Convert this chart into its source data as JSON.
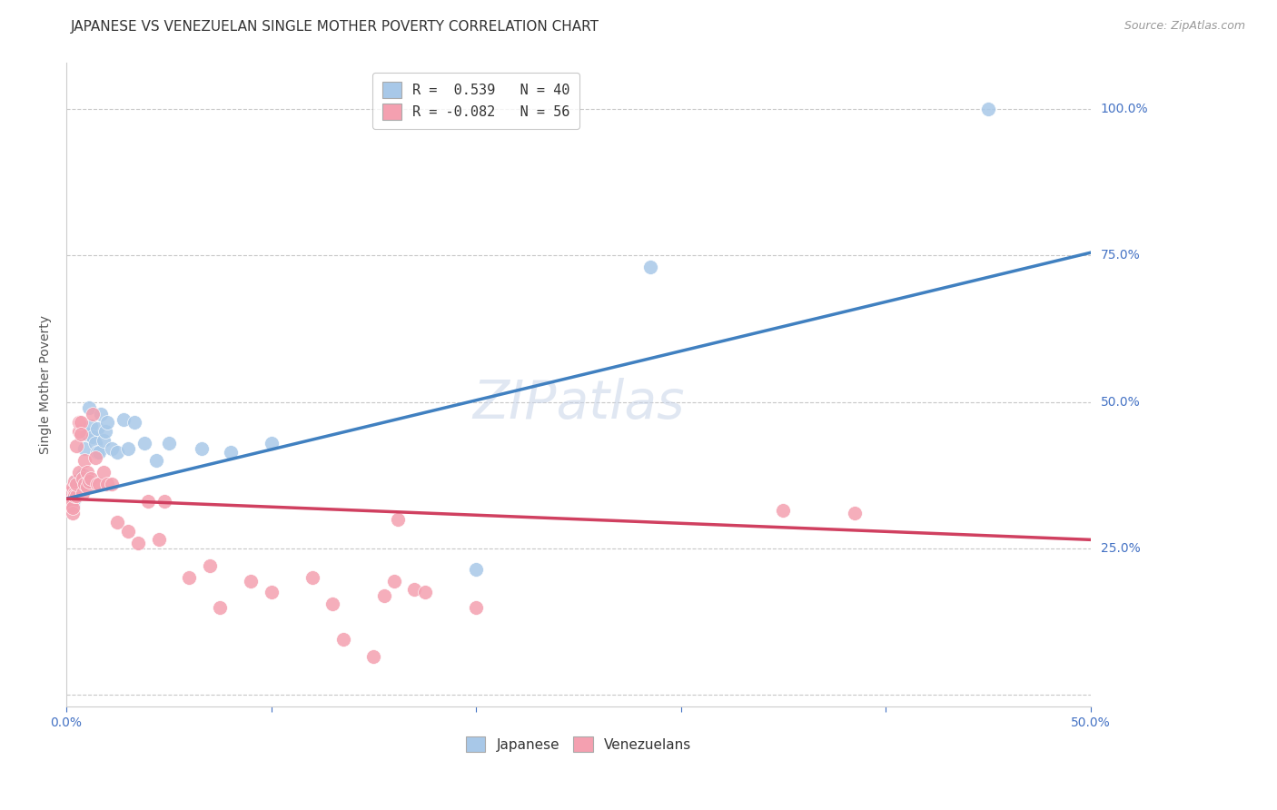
{
  "title": "JAPANESE VS VENEZUELAN SINGLE MOTHER POVERTY CORRELATION CHART",
  "source": "Source: ZipAtlas.com",
  "ylabel": "Single Mother Poverty",
  "xlim": [
    0.0,
    0.5
  ],
  "ylim": [
    -0.02,
    1.08
  ],
  "yticks": [
    0.0,
    0.25,
    0.5,
    0.75,
    1.0
  ],
  "ytick_labels": [
    "",
    "25.0%",
    "50.0%",
    "75.0%",
    "100.0%"
  ],
  "xticks": [
    0.0,
    0.1,
    0.2,
    0.3,
    0.4,
    0.5
  ],
  "xtick_labels": [
    "0.0%",
    "",
    "",
    "",
    "",
    "50.0%"
  ],
  "legend_line1": "R =  0.539   N = 40",
  "legend_line2": "R = -0.082   N = 56",
  "watermark": "ZIPatlas",
  "background_color": "#ffffff",
  "grid_color": "#c8c8c8",
  "japanese_color": "#a8c8e8",
  "venezuelan_color": "#f4a0b0",
  "japanese_line_color": "#4080c0",
  "venezuelan_line_color": "#d04060",
  "jp_line_x0": 0.0,
  "jp_line_y0": 0.335,
  "jp_line_x1": 0.5,
  "jp_line_y1": 0.755,
  "vz_line_x0": 0.0,
  "vz_line_y0": 0.335,
  "vz_line_x1": 0.5,
  "vz_line_y1": 0.265,
  "japanese_points": [
    [
      0.002,
      0.335
    ],
    [
      0.003,
      0.325
    ],
    [
      0.004,
      0.335
    ],
    [
      0.005,
      0.345
    ],
    [
      0.005,
      0.365
    ],
    [
      0.006,
      0.35
    ],
    [
      0.006,
      0.36
    ],
    [
      0.007,
      0.35
    ],
    [
      0.007,
      0.365
    ],
    [
      0.008,
      0.36
    ],
    [
      0.008,
      0.375
    ],
    [
      0.009,
      0.355
    ],
    [
      0.009,
      0.42
    ],
    [
      0.01,
      0.37
    ],
    [
      0.01,
      0.445
    ],
    [
      0.011,
      0.49
    ],
    [
      0.012,
      0.46
    ],
    [
      0.013,
      0.44
    ],
    [
      0.014,
      0.43
    ],
    [
      0.015,
      0.415
    ],
    [
      0.015,
      0.455
    ],
    [
      0.016,
      0.415
    ],
    [
      0.017,
      0.48
    ],
    [
      0.018,
      0.435
    ],
    [
      0.019,
      0.45
    ],
    [
      0.02,
      0.465
    ],
    [
      0.022,
      0.42
    ],
    [
      0.025,
      0.415
    ],
    [
      0.028,
      0.47
    ],
    [
      0.03,
      0.42
    ],
    [
      0.033,
      0.465
    ],
    [
      0.038,
      0.43
    ],
    [
      0.044,
      0.4
    ],
    [
      0.05,
      0.43
    ],
    [
      0.066,
      0.42
    ],
    [
      0.08,
      0.415
    ],
    [
      0.1,
      0.43
    ],
    [
      0.2,
      0.215
    ],
    [
      0.285,
      0.73
    ],
    [
      0.45,
      1.0
    ]
  ],
  "venezuelan_points": [
    [
      0.001,
      0.345
    ],
    [
      0.001,
      0.325
    ],
    [
      0.002,
      0.33
    ],
    [
      0.002,
      0.325
    ],
    [
      0.003,
      0.31
    ],
    [
      0.003,
      0.32
    ],
    [
      0.003,
      0.355
    ],
    [
      0.004,
      0.345
    ],
    [
      0.004,
      0.34
    ],
    [
      0.004,
      0.365
    ],
    [
      0.005,
      0.34
    ],
    [
      0.005,
      0.36
    ],
    [
      0.005,
      0.425
    ],
    [
      0.006,
      0.45
    ],
    [
      0.006,
      0.465
    ],
    [
      0.006,
      0.38
    ],
    [
      0.007,
      0.465
    ],
    [
      0.007,
      0.445
    ],
    [
      0.008,
      0.37
    ],
    [
      0.008,
      0.345
    ],
    [
      0.009,
      0.4
    ],
    [
      0.009,
      0.36
    ],
    [
      0.01,
      0.38
    ],
    [
      0.01,
      0.355
    ],
    [
      0.011,
      0.365
    ],
    [
      0.012,
      0.37
    ],
    [
      0.013,
      0.48
    ],
    [
      0.014,
      0.405
    ],
    [
      0.015,
      0.36
    ],
    [
      0.016,
      0.36
    ],
    [
      0.018,
      0.38
    ],
    [
      0.02,
      0.36
    ],
    [
      0.022,
      0.36
    ],
    [
      0.025,
      0.295
    ],
    [
      0.03,
      0.28
    ],
    [
      0.035,
      0.26
    ],
    [
      0.04,
      0.33
    ],
    [
      0.045,
      0.265
    ],
    [
      0.048,
      0.33
    ],
    [
      0.06,
      0.2
    ],
    [
      0.07,
      0.22
    ],
    [
      0.075,
      0.15
    ],
    [
      0.09,
      0.195
    ],
    [
      0.1,
      0.175
    ],
    [
      0.12,
      0.2
    ],
    [
      0.13,
      0.155
    ],
    [
      0.135,
      0.095
    ],
    [
      0.15,
      0.065
    ],
    [
      0.155,
      0.17
    ],
    [
      0.16,
      0.195
    ],
    [
      0.162,
      0.3
    ],
    [
      0.17,
      0.18
    ],
    [
      0.175,
      0.175
    ],
    [
      0.2,
      0.15
    ],
    [
      0.35,
      0.315
    ],
    [
      0.385,
      0.31
    ]
  ],
  "title_fontsize": 11,
  "axis_label_fontsize": 10,
  "tick_fontsize": 10,
  "source_fontsize": 9,
  "legend_fontsize": 11,
  "watermark_fontsize": 42,
  "watermark_color": "#c8d4e8",
  "watermark_alpha": 0.55
}
